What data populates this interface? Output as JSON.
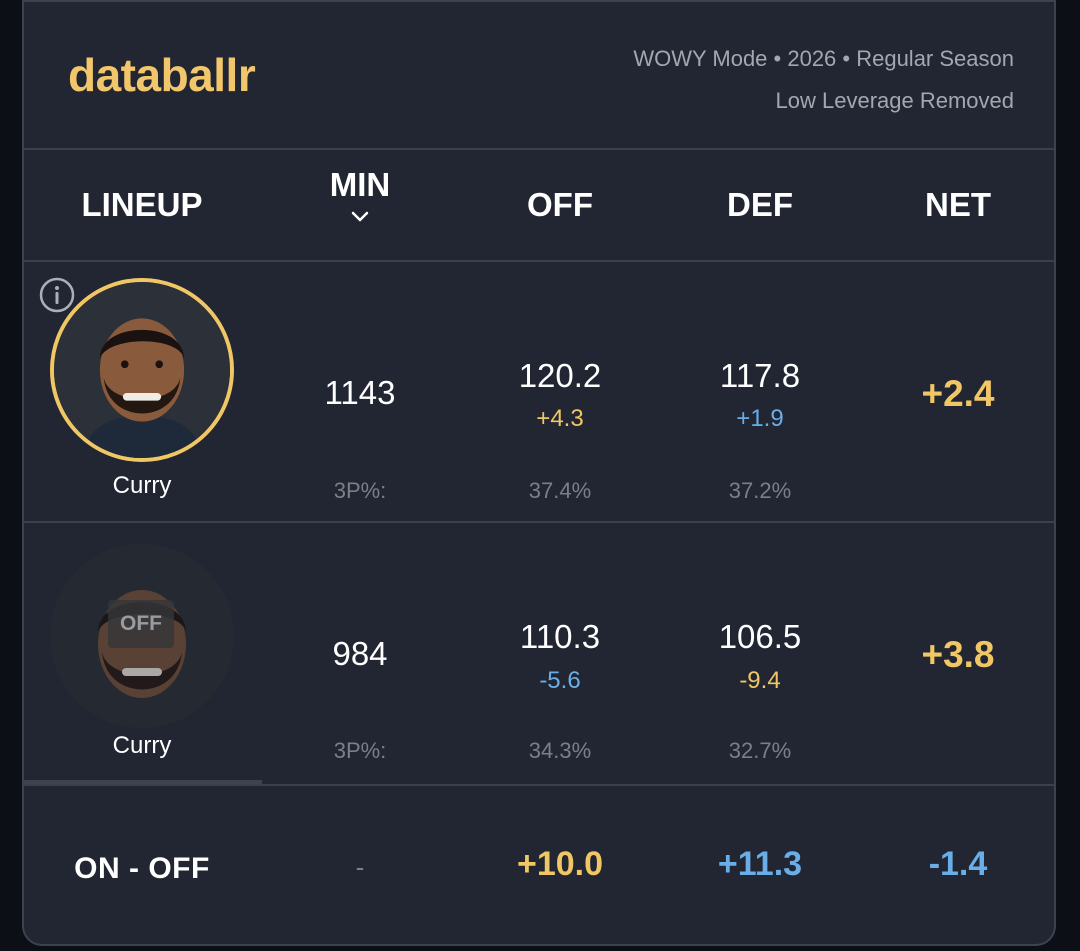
{
  "header": {
    "logo": "databallr",
    "meta_line1": "WOWY Mode • 2026 • Regular Season",
    "meta_line2": "Low Leverage Removed"
  },
  "columns": {
    "lineup": "LINEUP",
    "min": "MIN",
    "off": "OFF",
    "def": "DEF",
    "net": "NET"
  },
  "rows": [
    {
      "player": "Curry",
      "state": "on",
      "min": "1143",
      "off": "120.2",
      "off_delta": "+4.3",
      "def": "117.8",
      "def_delta": "+1.9",
      "net": "+2.4",
      "threep_label": "3P%:",
      "off_3p": "37.4%",
      "def_3p": "37.2%"
    },
    {
      "player": "Curry",
      "state": "off",
      "off_tag": "OFF",
      "min": "984",
      "off": "110.3",
      "off_delta": "-5.6",
      "def": "106.5",
      "def_delta": "-9.4",
      "net": "+3.8",
      "threep_label": "3P%:",
      "off_3p": "34.3%",
      "def_3p": "32.7%"
    }
  ],
  "summary": {
    "label": "ON - OFF",
    "min": "-",
    "off": "+10.0",
    "def": "+11.3",
    "net": "-1.4"
  },
  "colors": {
    "accent_gold": "#f0c764",
    "accent_blue": "#6aaee8",
    "card_bg": "#212632"
  },
  "icons": {
    "info": "info-icon",
    "sort": "chevron-down-icon"
  }
}
